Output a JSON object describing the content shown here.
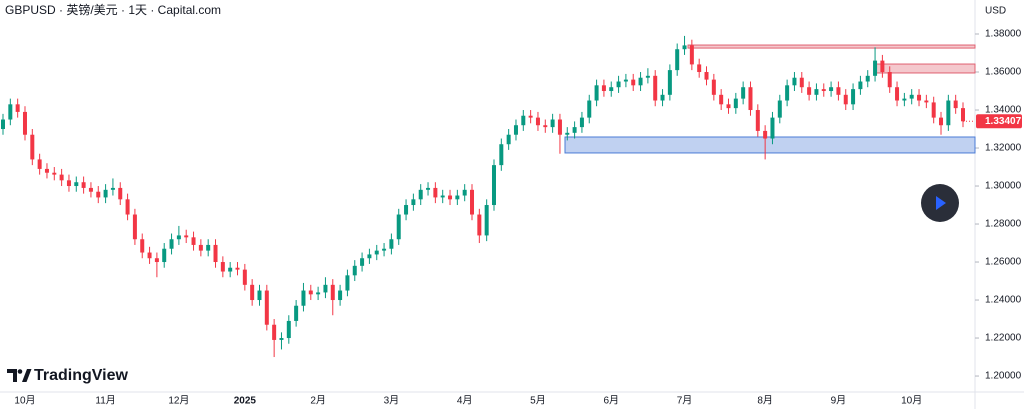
{
  "chart_data": {
    "type": "candlestick",
    "title": "GBPUSD · 英镑/美元 · 1天 · Capital.com",
    "y_axis_label": "USD",
    "watermark": "TradingView",
    "up_color": "#089981",
    "down_color": "#f23645",
    "ylim": [
      1.1916,
      1.3979
    ],
    "yticks": [
      {
        "value": 1.2,
        "label": "1.20000"
      },
      {
        "value": 1.22,
        "label": "1.22000"
      },
      {
        "value": 1.24,
        "label": "1.24000"
      },
      {
        "value": 1.26,
        "label": "1.26000"
      },
      {
        "value": 1.28,
        "label": "1.28000"
      },
      {
        "value": 1.3,
        "label": "1.30000"
      },
      {
        "value": 1.32,
        "label": "1.32000"
      },
      {
        "value": 1.34,
        "label": "1.34000"
      },
      {
        "value": 1.36,
        "label": "1.36000"
      },
      {
        "value": 1.38,
        "label": "1.38000"
      }
    ],
    "categories": [
      null,
      null,
      null,
      "10月",
      null,
      null,
      null,
      null,
      null,
      null,
      null,
      null,
      null,
      null,
      "11月",
      null,
      null,
      null,
      null,
      null,
      null,
      null,
      null,
      null,
      "12月",
      null,
      null,
      null,
      null,
      null,
      null,
      null,
      null,
      "2025",
      null,
      null,
      null,
      null,
      null,
      null,
      null,
      null,
      null,
      "2月",
      null,
      null,
      null,
      null,
      null,
      null,
      null,
      null,
      null,
      "3月",
      null,
      null,
      null,
      null,
      null,
      null,
      null,
      null,
      null,
      "4月",
      null,
      null,
      null,
      null,
      null,
      null,
      null,
      null,
      null,
      "5月",
      null,
      null,
      null,
      null,
      null,
      null,
      null,
      null,
      null,
      "6月",
      null,
      null,
      null,
      null,
      null,
      null,
      null,
      null,
      null,
      "7月",
      null,
      null,
      null,
      null,
      null,
      null,
      null,
      null,
      null,
      null,
      "8月",
      null,
      null,
      null,
      null,
      null,
      null,
      null,
      null,
      null,
      "9月",
      null,
      null,
      null,
      null,
      null,
      null,
      null,
      null,
      null,
      "10月",
      null,
      null,
      null,
      null,
      null,
      null,
      null
    ],
    "open": [
      1.33,
      1.335,
      1.343,
      1.339,
      1.327,
      1.314,
      1.309,
      1.307,
      1.306,
      1.303,
      1.3,
      1.302,
      1.299,
      1.297,
      1.294,
      1.298,
      1.299,
      1.293,
      1.285,
      1.272,
      1.265,
      1.262,
      1.26,
      1.267,
      1.272,
      1.274,
      1.273,
      1.269,
      1.266,
      1.269,
      1.26,
      1.255,
      1.257,
      1.256,
      1.248,
      1.24,
      1.245,
      1.227,
      1.219,
      1.22,
      1.229,
      1.237,
      1.245,
      1.243,
      1.244,
      1.248,
      1.24,
      1.245,
      1.253,
      1.258,
      1.262,
      1.264,
      1.266,
      1.267,
      1.272,
      1.285,
      1.29,
      1.293,
      1.298,
      1.299,
      1.294,
      1.295,
      1.293,
      1.295,
      1.298,
      1.285,
      1.274,
      1.29,
      1.311,
      1.322,
      1.327,
      1.332,
      1.337,
      1.336,
      1.332,
      1.331,
      1.335,
      1.327,
      1.328,
      1.331,
      1.336,
      1.345,
      1.353,
      1.35,
      1.352,
      1.355,
      1.356,
      1.353,
      1.357,
      1.358,
      1.345,
      1.348,
      1.361,
      1.372,
      1.374,
      1.364,
      1.36,
      1.356,
      1.348,
      1.343,
      1.341,
      1.346,
      1.352,
      1.34,
      1.329,
      1.325,
      1.336,
      1.345,
      1.353,
      1.357,
      1.352,
      1.348,
      1.351,
      1.35,
      1.352,
      1.348,
      1.343,
      1.351,
      1.355,
      1.358,
      1.366,
      1.36,
      1.352,
      1.345,
      1.346,
      1.348,
      1.345,
      1.344,
      1.336,
      1.332,
      1.345,
      1.341
    ],
    "high": [
      1.338,
      1.346,
      1.346,
      1.342,
      1.33,
      1.317,
      1.312,
      1.31,
      1.309,
      1.306,
      1.305,
      1.305,
      1.302,
      1.3,
      1.301,
      1.304,
      1.302,
      1.296,
      1.288,
      1.275,
      1.268,
      1.265,
      1.27,
      1.275,
      1.279,
      1.277,
      1.276,
      1.272,
      1.272,
      1.272,
      1.263,
      1.26,
      1.26,
      1.259,
      1.251,
      1.248,
      1.248,
      1.23,
      1.223,
      1.232,
      1.24,
      1.249,
      1.248,
      1.247,
      1.252,
      1.251,
      1.248,
      1.256,
      1.261,
      1.265,
      1.267,
      1.269,
      1.27,
      1.275,
      1.288,
      1.293,
      1.296,
      1.301,
      1.302,
      1.302,
      1.298,
      1.298,
      1.298,
      1.301,
      1.301,
      1.288,
      1.293,
      1.314,
      1.325,
      1.33,
      1.335,
      1.34,
      1.34,
      1.339,
      1.335,
      1.338,
      1.338,
      1.331,
      1.334,
      1.339,
      1.348,
      1.356,
      1.356,
      1.355,
      1.358,
      1.359,
      1.359,
      1.36,
      1.362,
      1.361,
      1.351,
      1.364,
      1.375,
      1.379,
      1.377,
      1.367,
      1.363,
      1.359,
      1.351,
      1.346,
      1.349,
      1.355,
      1.355,
      1.343,
      1.332,
      1.339,
      1.348,
      1.356,
      1.36,
      1.36,
      1.355,
      1.354,
      1.354,
      1.355,
      1.355,
      1.351,
      1.354,
      1.358,
      1.361,
      1.373,
      1.369,
      1.363,
      1.355,
      1.349,
      1.351,
      1.351,
      1.348,
      1.347,
      1.339,
      1.348,
      1.348,
      1.344
    ],
    "low": [
      1.327,
      1.332,
      1.336,
      1.324,
      1.311,
      1.306,
      1.304,
      1.303,
      1.3,
      1.297,
      1.297,
      1.296,
      1.294,
      1.291,
      1.291,
      1.295,
      1.29,
      1.282,
      1.269,
      1.262,
      1.259,
      1.252,
      1.257,
      1.264,
      1.269,
      1.27,
      1.266,
      1.263,
      1.263,
      1.257,
      1.252,
      1.252,
      1.253,
      1.245,
      1.237,
      1.237,
      1.224,
      1.21,
      1.214,
      1.217,
      1.226,
      1.234,
      1.24,
      1.24,
      1.241,
      1.232,
      1.237,
      1.242,
      1.25,
      1.255,
      1.259,
      1.261,
      1.263,
      1.264,
      1.269,
      1.282,
      1.287,
      1.29,
      1.295,
      1.291,
      1.291,
      1.29,
      1.29,
      1.292,
      1.282,
      1.27,
      1.271,
      1.287,
      1.308,
      1.319,
      1.324,
      1.329,
      1.333,
      1.329,
      1.328,
      1.328,
      1.317,
      1.324,
      1.325,
      1.328,
      1.333,
      1.342,
      1.347,
      1.347,
      1.349,
      1.352,
      1.35,
      1.35,
      1.354,
      1.342,
      1.342,
      1.345,
      1.358,
      1.369,
      1.361,
      1.357,
      1.353,
      1.345,
      1.34,
      1.338,
      1.338,
      1.343,
      1.337,
      1.326,
      1.314,
      1.322,
      1.333,
      1.342,
      1.35,
      1.349,
      1.345,
      1.345,
      1.347,
      1.347,
      1.345,
      1.34,
      1.34,
      1.348,
      1.352,
      1.355,
      1.357,
      1.349,
      1.342,
      1.342,
      1.343,
      1.342,
      1.341,
      1.333,
      1.327,
      1.329,
      1.338,
      1.331
    ],
    "close": [
      1.335,
      1.343,
      1.339,
      1.327,
      1.314,
      1.309,
      1.307,
      1.306,
      1.303,
      1.3,
      1.302,
      1.299,
      1.297,
      1.294,
      1.298,
      1.299,
      1.293,
      1.285,
      1.272,
      1.265,
      1.262,
      1.26,
      1.267,
      1.272,
      1.274,
      1.273,
      1.269,
      1.266,
      1.269,
      1.26,
      1.255,
      1.257,
      1.256,
      1.248,
      1.24,
      1.245,
      1.227,
      1.219,
      1.22,
      1.229,
      1.237,
      1.245,
      1.243,
      1.244,
      1.248,
      1.24,
      1.245,
      1.253,
      1.258,
      1.262,
      1.264,
      1.266,
      1.267,
      1.272,
      1.285,
      1.29,
      1.293,
      1.298,
      1.299,
      1.294,
      1.295,
      1.293,
      1.295,
      1.298,
      1.285,
      1.274,
      1.29,
      1.311,
      1.322,
      1.327,
      1.332,
      1.337,
      1.336,
      1.332,
      1.331,
      1.335,
      1.327,
      1.328,
      1.331,
      1.336,
      1.345,
      1.353,
      1.35,
      1.352,
      1.355,
      1.356,
      1.353,
      1.357,
      1.358,
      1.345,
      1.348,
      1.361,
      1.372,
      1.374,
      1.364,
      1.36,
      1.356,
      1.348,
      1.343,
      1.341,
      1.346,
      1.352,
      1.34,
      1.329,
      1.325,
      1.336,
      1.345,
      1.353,
      1.357,
      1.352,
      1.348,
      1.351,
      1.35,
      1.352,
      1.348,
      1.343,
      1.351,
      1.355,
      1.358,
      1.366,
      1.36,
      1.352,
      1.345,
      1.346,
      1.348,
      1.345,
      1.344,
      1.336,
      1.332,
      1.345,
      1.341,
      1.33407
    ],
    "zones": [
      {
        "low": 1.3726,
        "high": 1.3742,
        "color": "#e06070"
      },
      {
        "low": 1.3595,
        "high": 1.3642,
        "color": "#e06070"
      },
      {
        "low": 1.3174,
        "high": 1.3258,
        "color": "#4a7bd6"
      }
    ]
  }
}
